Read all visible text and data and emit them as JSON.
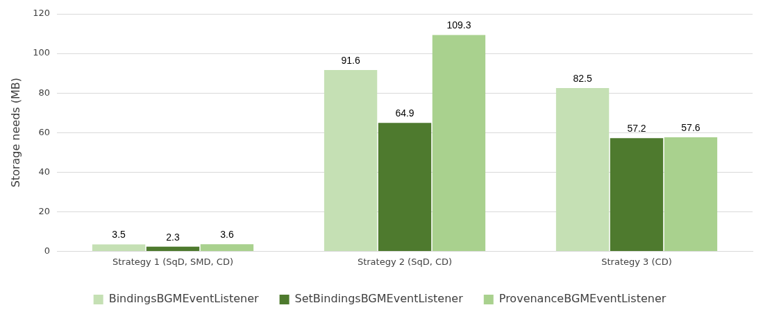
{
  "chart_data": {
    "type": "bar",
    "ylabel": "Storage needs (MB)",
    "categories": [
      "Strategy 1 (SqD, SMD, CD)",
      "Strategy 2 (SqD, CD)",
      "Strategy 3 (CD)"
    ],
    "series": [
      {
        "name": "BindingsBGMEventListener",
        "color": "#c5e0b4",
        "values": [
          3.5,
          91.6,
          82.5
        ]
      },
      {
        "name": "SetBindingsBGMEventListener",
        "color": "#4e7a2e",
        "values": [
          2.3,
          64.9,
          57.2
        ]
      },
      {
        "name": "ProvenanceBGMEventListener",
        "color": "#a9d18e",
        "values": [
          3.6,
          109.3,
          57.6
        ]
      }
    ],
    "ylim": [
      0,
      120
    ],
    "yticks": [
      0,
      20,
      40,
      60,
      80,
      100,
      120
    ],
    "grid": "y",
    "legend": "bottom",
    "data_labels": true
  }
}
